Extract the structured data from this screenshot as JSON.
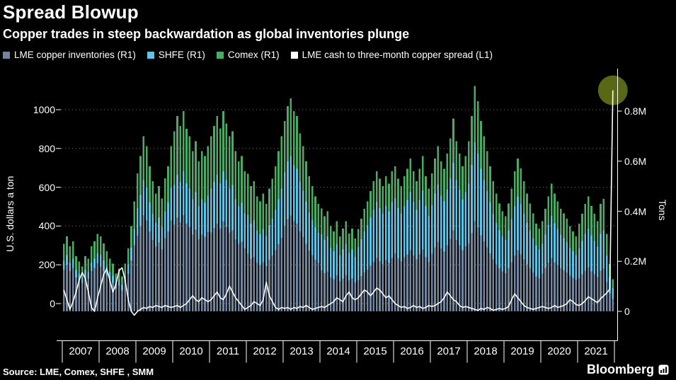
{
  "header": {
    "title": "Spread Blowup",
    "subtitle": "Copper trades in steep backwardation as global inventories plunge"
  },
  "legend": {
    "items": [
      {
        "label": "LME copper inventories (R1)",
        "color": "#72869e"
      },
      {
        "label": "SHFE (R1)",
        "color": "#5ec5e6"
      },
      {
        "label": "Comex (R1)",
        "color": "#4aab63"
      },
      {
        "label": "LME cash to three-month copper spread (L1)",
        "color": "#ffffff"
      }
    ]
  },
  "footer": {
    "source": "Source: LME, Comex, SHFE , SMM",
    "brand": "Bloomberg"
  },
  "chart_data": {
    "type": "bar",
    "stacked": true,
    "title": "Spread Blowup",
    "frequency": "monthly",
    "period": "2007-01 to 2021-12",
    "years": [
      "2007",
      "2008",
      "2009",
      "2010",
      "2011",
      "2012",
      "2013",
      "2014",
      "2015",
      "2016",
      "2017",
      "2018",
      "2019",
      "2020",
      "2021"
    ],
    "left_axis": {
      "label": "U.S. dollars a ton",
      "ticks": [
        "0",
        "200",
        "400",
        "600",
        "800",
        "1000"
      ],
      "tick_values": [
        0,
        200,
        400,
        600,
        800,
        1000
      ],
      "range_hint": [
        -80,
        1150
      ]
    },
    "right_axis": {
      "label": "Tons",
      "ticks": [
        "0",
        "0.2M",
        "0.4M",
        "0.6M",
        "0.8M"
      ],
      "tick_values": [
        0,
        0.2,
        0.4,
        0.6,
        0.8
      ],
      "unit": "million tons"
    },
    "series": [
      {
        "name": "LME copper inventories (R1)",
        "axis": "R1",
        "color": "#72869e",
        "values": [
          0.167,
          0.186,
          0.161,
          0.174,
          0.136,
          0.124,
          0.112,
          0.136,
          0.13,
          0.161,
          0.174,
          0.192,
          0.18,
          0.162,
          0.144,
          0.126,
          0.114,
          0.09,
          0.102,
          0.084,
          0.114,
          0.15,
          0.204,
          0.264,
          0.303,
          0.341,
          0.385,
          0.363,
          0.319,
          0.286,
          0.259,
          0.275,
          0.248,
          0.292,
          0.319,
          0.363,
          0.346,
          0.374,
          0.355,
          0.384,
          0.35,
          0.336,
          0.307,
          0.326,
          0.288,
          0.307,
          0.298,
          0.317,
          0.315,
          0.333,
          0.351,
          0.329,
          0.36,
          0.338,
          0.315,
          0.324,
          0.288,
          0.27,
          0.279,
          0.252,
          0.231,
          0.21,
          0.218,
          0.193,
          0.185,
          0.197,
          0.181,
          0.206,
          0.223,
          0.244,
          0.269,
          0.294,
          0.342,
          0.369,
          0.383,
          0.36,
          0.351,
          0.32,
          0.297,
          0.27,
          0.243,
          0.225,
          0.207,
          0.194,
          0.164,
          0.152,
          0.16,
          0.136,
          0.128,
          0.144,
          0.12,
          0.132,
          0.144,
          0.124,
          0.132,
          0.116,
          0.125,
          0.141,
          0.156,
          0.167,
          0.182,
          0.198,
          0.213,
          0.201,
          0.19,
          0.205,
          0.194,
          0.213,
          0.232,
          0.212,
          0.2,
          0.216,
          0.228,
          0.244,
          0.224,
          0.208,
          0.228,
          0.248,
          0.216,
          0.196,
          0.231,
          0.256,
          0.277,
          0.252,
          0.239,
          0.265,
          0.29,
          0.323,
          0.286,
          0.265,
          0.244,
          0.26,
          0.272,
          0.312,
          0.36,
          0.336,
          0.304,
          0.28,
          0.256,
          0.232,
          0.208,
          0.188,
          0.172,
          0.16,
          0.152,
          0.172,
          0.196,
          0.224,
          0.244,
          0.228,
          0.208,
          0.188,
          0.172,
          0.156,
          0.14,
          0.132,
          0.151,
          0.172,
          0.193,
          0.214,
          0.197,
          0.185,
          0.172,
          0.164,
          0.155,
          0.143,
          0.134,
          0.126,
          0.133,
          0.148,
          0.163,
          0.175,
          0.16,
          0.148,
          0.137,
          0.163,
          0.171,
          0.118,
          0.072,
          0.049
        ]
      },
      {
        "name": "SHFE (R1)",
        "axis": "R1",
        "color": "#5ec5e6",
        "values": [
          0.035,
          0.039,
          0.034,
          0.036,
          0.029,
          0.026,
          0.023,
          0.029,
          0.027,
          0.034,
          0.036,
          0.04,
          0.045,
          0.041,
          0.036,
          0.032,
          0.029,
          0.023,
          0.026,
          0.021,
          0.029,
          0.038,
          0.051,
          0.066,
          0.11,
          0.124,
          0.14,
          0.132,
          0.116,
          0.104,
          0.094,
          0.1,
          0.09,
          0.106,
          0.116,
          0.132,
          0.158,
          0.172,
          0.163,
          0.176,
          0.161,
          0.154,
          0.141,
          0.15,
          0.132,
          0.141,
          0.136,
          0.145,
          0.175,
          0.185,
          0.195,
          0.183,
          0.2,
          0.188,
          0.175,
          0.18,
          0.16,
          0.15,
          0.155,
          0.14,
          0.154,
          0.14,
          0.146,
          0.129,
          0.123,
          0.132,
          0.12,
          0.137,
          0.148,
          0.162,
          0.179,
          0.196,
          0.213,
          0.23,
          0.238,
          0.224,
          0.218,
          0.199,
          0.185,
          0.168,
          0.151,
          0.14,
          0.129,
          0.12,
          0.144,
          0.133,
          0.14,
          0.119,
          0.112,
          0.126,
          0.105,
          0.116,
          0.126,
          0.109,
          0.116,
          0.102,
          0.132,
          0.148,
          0.164,
          0.176,
          0.192,
          0.208,
          0.224,
          0.212,
          0.2,
          0.216,
          0.204,
          0.224,
          0.22,
          0.201,
          0.19,
          0.205,
          0.217,
          0.232,
          0.213,
          0.198,
          0.217,
          0.236,
          0.205,
          0.186,
          0.193,
          0.214,
          0.231,
          0.21,
          0.2,
          0.221,
          0.242,
          0.27,
          0.238,
          0.221,
          0.203,
          0.217,
          0.238,
          0.273,
          0.315,
          0.294,
          0.266,
          0.245,
          0.224,
          0.203,
          0.182,
          0.165,
          0.151,
          0.14,
          0.133,
          0.151,
          0.172,
          0.196,
          0.214,
          0.2,
          0.182,
          0.165,
          0.151,
          0.137,
          0.123,
          0.116,
          0.119,
          0.135,
          0.152,
          0.168,
          0.155,
          0.145,
          0.135,
          0.129,
          0.122,
          0.112,
          0.106,
          0.099,
          0.119,
          0.133,
          0.146,
          0.156,
          0.143,
          0.133,
          0.122,
          0.146,
          0.153,
          0.105,
          0.065,
          0.044
        ]
      },
      {
        "name": "Comex (R1)",
        "axis": "R1",
        "color": "#4aab63",
        "values": [
          0.068,
          0.075,
          0.065,
          0.07,
          0.055,
          0.05,
          0.045,
          0.055,
          0.053,
          0.065,
          0.07,
          0.078,
          0.075,
          0.068,
          0.06,
          0.053,
          0.048,
          0.038,
          0.043,
          0.035,
          0.048,
          0.063,
          0.085,
          0.11,
          0.138,
          0.155,
          0.175,
          0.165,
          0.145,
          0.13,
          0.118,
          0.125,
          0.113,
          0.133,
          0.145,
          0.165,
          0.216,
          0.234,
          0.222,
          0.24,
          0.219,
          0.21,
          0.192,
          0.204,
          0.18,
          0.192,
          0.186,
          0.198,
          0.21,
          0.222,
          0.234,
          0.219,
          0.24,
          0.225,
          0.21,
          0.216,
          0.192,
          0.18,
          0.186,
          0.168,
          0.165,
          0.15,
          0.156,
          0.138,
          0.132,
          0.141,
          0.129,
          0.147,
          0.159,
          0.174,
          0.192,
          0.21,
          0.205,
          0.221,
          0.23,
          0.216,
          0.211,
          0.192,
          0.178,
          0.162,
          0.146,
          0.135,
          0.124,
          0.116,
          0.103,
          0.095,
          0.1,
          0.085,
          0.08,
          0.09,
          0.075,
          0.083,
          0.09,
          0.078,
          0.083,
          0.073,
          0.073,
          0.081,
          0.09,
          0.097,
          0.106,
          0.114,
          0.123,
          0.117,
          0.11,
          0.119,
          0.112,
          0.123,
          0.128,
          0.117,
          0.11,
          0.119,
          0.125,
          0.134,
          0.123,
          0.114,
          0.125,
          0.136,
          0.119,
          0.108,
          0.127,
          0.14,
          0.152,
          0.138,
          0.131,
          0.145,
          0.159,
          0.177,
          0.156,
          0.145,
          0.133,
          0.143,
          0.17,
          0.195,
          0.225,
          0.21,
          0.19,
          0.175,
          0.16,
          0.145,
          0.13,
          0.118,
          0.108,
          0.1,
          0.095,
          0.108,
          0.123,
          0.14,
          0.153,
          0.143,
          0.13,
          0.118,
          0.108,
          0.098,
          0.088,
          0.083,
          0.09,
          0.103,
          0.115,
          0.128,
          0.118,
          0.11,
          0.103,
          0.098,
          0.093,
          0.085,
          0.08,
          0.075,
          0.098,
          0.109,
          0.12,
          0.129,
          0.118,
          0.109,
          0.101,
          0.12,
          0.126,
          0.087,
          0.053,
          0.036
        ]
      }
    ],
    "line_series": {
      "name": "LME cash to three-month copper spread (L1)",
      "axis": "L1",
      "color": "#ffffff",
      "values": [
        70,
        20,
        -30,
        10,
        60,
        120,
        160,
        130,
        60,
        -20,
        -40,
        30,
        90,
        150,
        180,
        120,
        60,
        100,
        170,
        185,
        120,
        20,
        -40,
        -60,
        -40,
        -30,
        -20,
        -25,
        -15,
        -20,
        -10,
        -15,
        -20,
        -10,
        -15,
        -20,
        -15,
        -10,
        -20,
        -10,
        0,
        20,
        40,
        20,
        10,
        30,
        20,
        10,
        20,
        40,
        60,
        30,
        20,
        50,
        90,
        60,
        30,
        10,
        -10,
        -30,
        -20,
        -10,
        10,
        0,
        -10,
        20,
        110,
        40,
        10,
        -20,
        -30,
        -20,
        -25,
        -20,
        -30,
        -20,
        -25,
        -15,
        -20,
        -10,
        -20,
        -30,
        -25,
        -20,
        -15,
        -20,
        -10,
        0,
        10,
        30,
        20,
        10,
        40,
        60,
        30,
        20,
        30,
        50,
        70,
        60,
        40,
        60,
        80,
        70,
        50,
        30,
        40,
        20,
        0,
        -10,
        -20,
        -15,
        -25,
        -20,
        -10,
        -20,
        -15,
        -25,
        -20,
        -10,
        -15,
        -10,
        0,
        10,
        30,
        60,
        40,
        20,
        10,
        -10,
        -20,
        -15,
        -20,
        -25,
        -30,
        -35,
        -25,
        -30,
        -20,
        -25,
        -35,
        -30,
        -25,
        -30,
        -25,
        -15,
        20,
        50,
        30,
        10,
        -10,
        -20,
        -25,
        -30,
        -25,
        -20,
        -15,
        -20,
        -25,
        -20,
        -10,
        -20,
        -15,
        -10,
        0,
        20,
        10,
        -5,
        -10,
        0,
        15,
        35,
        25,
        15,
        5,
        25,
        40,
        55,
        75,
        1100
      ]
    },
    "annotation": {
      "type": "circle-highlight",
      "at": "2021-12",
      "series": "LME cash to three-month copper spread (L1)",
      "value": 1100,
      "color": "#5f7117"
    }
  }
}
